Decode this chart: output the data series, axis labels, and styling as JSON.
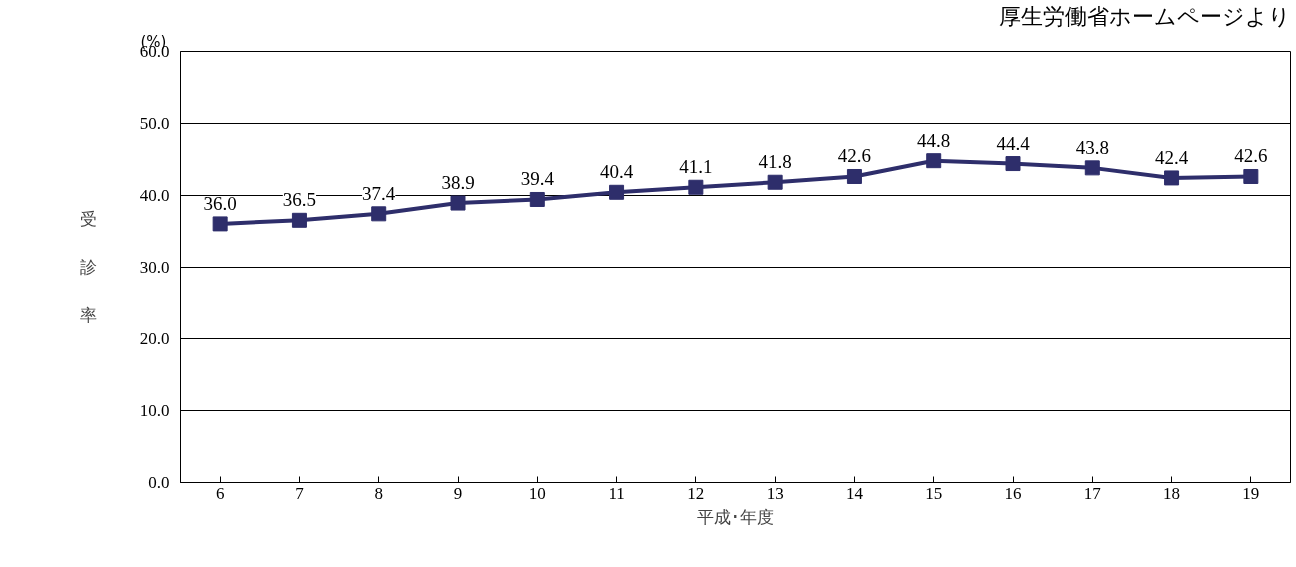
{
  "chart_data": {
    "type": "line",
    "categories": [
      "6",
      "7",
      "8",
      "9",
      "10",
      "11",
      "12",
      "13",
      "14",
      "15",
      "16",
      "17",
      "18",
      "19"
    ],
    "series": [
      {
        "color": "#2e2e6b",
        "values": [
          36.0,
          36.5,
          37.4,
          38.9,
          39.4,
          40.4,
          41.1,
          41.8,
          42.6,
          44.8,
          44.4,
          43.8,
          42.4,
          42.6
        ],
        "value_labels": [
          "36.0",
          "36.5",
          "37.4",
          "38.9",
          "39.4",
          "40.4",
          "41.1",
          "41.8",
          "42.6",
          "44.8",
          "44.4",
          "43.8",
          "42.4",
          "42.6"
        ]
      }
    ],
    "xlabel": "平成･年度",
    "ylabel": "受診率",
    "annotations": [
      "(%)",
      "厚生労働省ホームページより"
    ],
    "ylim": [
      0,
      60
    ],
    "yticks": [
      {
        "value": 0,
        "label": "0.0"
      },
      {
        "value": 10,
        "label": "10.0"
      },
      {
        "value": 20,
        "label": "20.0"
      },
      {
        "value": 30,
        "label": "30.0"
      },
      {
        "value": 40,
        "label": "40.0"
      },
      {
        "value": 50,
        "label": "50.0"
      },
      {
        "value": 60,
        "label": "60.0"
      }
    ],
    "grid": "y",
    "marker": "square",
    "line_style": "solid"
  }
}
